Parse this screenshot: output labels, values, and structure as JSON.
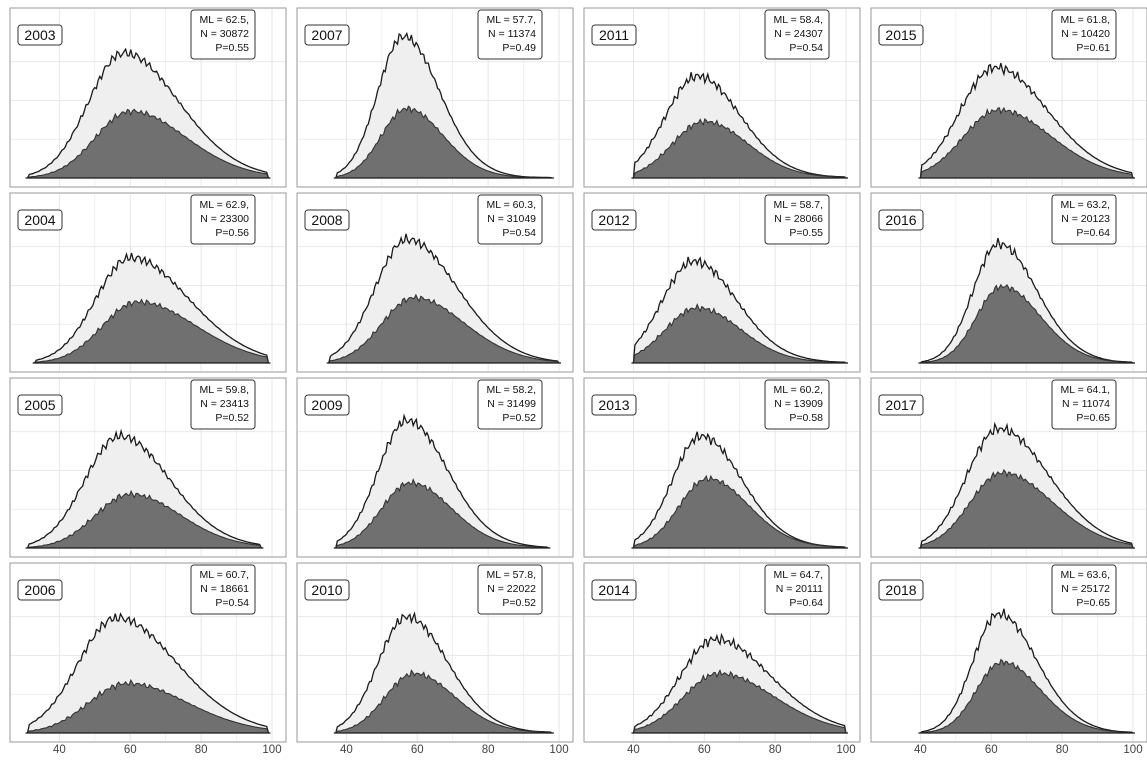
{
  "chart_data": {
    "type": "area",
    "layout": "4x4 small multiples, panels ordered by column",
    "x_range": [
      30,
      100
    ],
    "x_ticks": [
      40,
      60,
      80,
      100
    ],
    "colors": {
      "upper": "#efefef",
      "lower": "#707070",
      "line": "#1a1a1a",
      "grid": "#e6e6e6",
      "frame": "#9a9a9a"
    },
    "panels": [
      {
        "year": "2003",
        "stats": [
          "ML = 62.5,",
          "N = 30872",
          "P=0.55"
        ],
        "x_span": [
          31,
          99
        ],
        "peak_total": 58,
        "peak_lower": 60,
        "spread": 11,
        "tail": 0.3,
        "h_total": 0.88,
        "h_lower": 0.47
      },
      {
        "year": "2004",
        "stats": [
          "ML = 62.9,",
          "N = 23300",
          "P=0.56"
        ],
        "x_span": [
          33,
          99
        ],
        "peak_total": 60,
        "peak_lower": 62,
        "spread": 11,
        "tail": 0.35,
        "h_total": 0.74,
        "h_lower": 0.43
      },
      {
        "year": "2005",
        "stats": [
          "ML = 59.8,",
          "N = 23413",
          "P=0.52"
        ],
        "x_span": [
          31,
          97
        ],
        "peak_total": 57,
        "peak_lower": 60,
        "spread": 11,
        "tail": 0.2,
        "h_total": 0.79,
        "h_lower": 0.38
      },
      {
        "year": "2006",
        "stats": [
          "ML = 60.7,",
          "N = 18661",
          "P=0.54"
        ],
        "x_span": [
          31,
          99
        ],
        "peak_total": 56,
        "peak_lower": 59,
        "spread": 12,
        "tail": 0.3,
        "h_total": 0.81,
        "h_lower": 0.35
      },
      {
        "year": "2007",
        "stats": [
          "ML = 57.7,",
          "N = 11374",
          "P=0.49"
        ],
        "x_span": [
          37,
          98
        ],
        "peak_total": 56,
        "peak_lower": 57,
        "spread": 8,
        "tail": 0.2,
        "h_total": 1.0,
        "h_lower": 0.49
      },
      {
        "year": "2008",
        "stats": [
          "ML = 60.3,",
          "N = 31049",
          "P=0.54"
        ],
        "x_span": [
          35,
          100
        ],
        "peak_total": 57,
        "peak_lower": 59,
        "spread": 10,
        "tail": 0.3,
        "h_total": 0.87,
        "h_lower": 0.46
      },
      {
        "year": "2009",
        "stats": [
          "ML = 58.2,",
          "N = 31499",
          "P=0.52"
        ],
        "x_span": [
          37,
          97
        ],
        "peak_total": 57,
        "peak_lower": 58,
        "spread": 9,
        "tail": 0.2,
        "h_total": 0.9,
        "h_lower": 0.46
      },
      {
        "year": "2010",
        "stats": [
          "ML = 57.8,",
          "N = 22022",
          "P=0.52"
        ],
        "x_span": [
          37,
          98
        ],
        "peak_total": 57,
        "peak_lower": 59,
        "spread": 9,
        "tail": 0.2,
        "h_total": 0.82,
        "h_lower": 0.42
      },
      {
        "year": "2011",
        "stats": [
          "ML = 58.4,",
          "N = 24307",
          "P=0.54"
        ],
        "x_span": [
          40,
          100
        ],
        "peak_total": 58,
        "peak_lower": 60,
        "spread": 10,
        "tail": 0.15,
        "h_total": 0.72,
        "h_lower": 0.4
      },
      {
        "year": "2012",
        "stats": [
          "ML = 58.7,",
          "N = 28066",
          "P=0.55"
        ],
        "x_span": [
          40,
          100
        ],
        "peak_total": 57,
        "peak_lower": 58,
        "spread": 10,
        "tail": 0.15,
        "h_total": 0.72,
        "h_lower": 0.39
      },
      {
        "year": "2013",
        "stats": [
          "ML = 60.2,",
          "N = 13909",
          "P=0.58"
        ],
        "x_span": [
          40,
          100
        ],
        "peak_total": 59,
        "peak_lower": 61,
        "spread": 9,
        "tail": 0.2,
        "h_total": 0.79,
        "h_lower": 0.49
      },
      {
        "year": "2014",
        "stats": [
          "ML = 64.7,",
          "N = 20111",
          "P=0.64"
        ],
        "x_span": [
          40,
          100
        ],
        "peak_total": 63,
        "peak_lower": 64,
        "spread": 11,
        "tail": 0.3,
        "h_total": 0.66,
        "h_lower": 0.42
      },
      {
        "year": "2015",
        "stats": [
          "ML = 61.8,",
          "N = 10420",
          "P=0.61"
        ],
        "x_span": [
          40,
          100
        ],
        "peak_total": 61,
        "peak_lower": 62,
        "spread": 11,
        "tail": 0.25,
        "h_total": 0.78,
        "h_lower": 0.48
      },
      {
        "year": "2016",
        "stats": [
          "ML = 63.2,",
          "N = 20123",
          "P=0.64"
        ],
        "x_span": [
          40,
          100
        ],
        "peak_total": 62,
        "peak_lower": 63,
        "spread": 8,
        "tail": 0.25,
        "h_total": 0.84,
        "h_lower": 0.54
      },
      {
        "year": "2017",
        "stats": [
          "ML = 64.1,",
          "N = 11074",
          "P=0.65"
        ],
        "x_span": [
          40,
          100
        ],
        "peak_total": 62,
        "peak_lower": 63,
        "spread": 10,
        "tail": 0.3,
        "h_total": 0.84,
        "h_lower": 0.53
      },
      {
        "year": "2018",
        "stats": [
          "ML = 63.6,",
          "N = 25172",
          "P=0.65"
        ],
        "x_span": [
          40,
          100
        ],
        "peak_total": 62,
        "peak_lower": 63,
        "spread": 8,
        "tail": 0.25,
        "h_total": 0.84,
        "h_lower": 0.5
      }
    ]
  }
}
